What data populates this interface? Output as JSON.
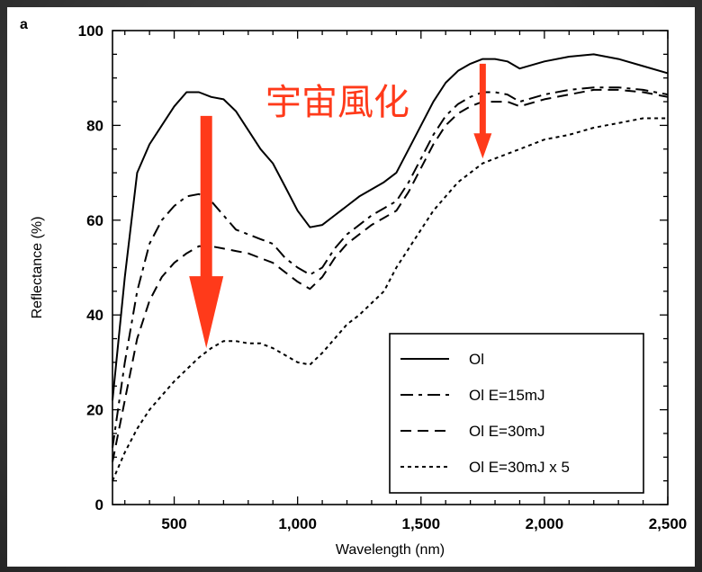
{
  "panel_label": "a",
  "colors": {
    "annotation": "#ff3a1a",
    "axis": "#000000",
    "background": "#ffffff"
  },
  "chart_data": {
    "type": "line",
    "title": "",
    "xlabel": "Wavelength (nm)",
    "ylabel": "Reflectance (%)",
    "xlim": [
      250,
      2500
    ],
    "ylim": [
      0,
      100
    ],
    "xticks": [
      500,
      1000,
      1500,
      2000,
      2500
    ],
    "xtick_labels": [
      "500",
      "1,000",
      "1,500",
      "2,000",
      "2,500"
    ],
    "yticks": [
      0,
      20,
      40,
      60,
      80,
      100
    ],
    "ytick_labels": [
      "0",
      "20",
      "40",
      "60",
      "80",
      "100"
    ],
    "grid": false,
    "legend_position": "bottom-right",
    "series": [
      {
        "name": "Ol",
        "dash": "",
        "x": [
          250,
          300,
          350,
          400,
          450,
          500,
          550,
          600,
          650,
          700,
          750,
          800,
          850,
          900,
          950,
          1000,
          1050,
          1100,
          1150,
          1200,
          1250,
          1300,
          1350,
          1400,
          1450,
          1500,
          1550,
          1600,
          1650,
          1700,
          1750,
          1800,
          1850,
          1900,
          2000,
          2100,
          2200,
          2300,
          2400,
          2500
        ],
        "y": [
          22,
          48,
          70,
          76,
          80,
          84,
          87,
          87,
          86,
          85.5,
          83,
          79,
          75,
          72,
          67,
          62,
          58.5,
          59,
          61,
          63,
          65,
          66.5,
          68,
          70,
          75,
          80,
          85,
          89,
          91.5,
          93,
          94,
          94,
          93.5,
          92,
          93.5,
          94.5,
          95,
          94,
          92.5,
          91
        ]
      },
      {
        "name": "Ol E=15mJ",
        "dash": "14,6,4,6",
        "x": [
          250,
          300,
          350,
          400,
          450,
          500,
          550,
          600,
          650,
          700,
          750,
          800,
          850,
          900,
          950,
          1000,
          1050,
          1100,
          1150,
          1200,
          1250,
          1300,
          1350,
          1400,
          1450,
          1500,
          1550,
          1600,
          1650,
          1700,
          1750,
          1800,
          1850,
          1900,
          2000,
          2100,
          2200,
          2300,
          2400,
          2500
        ],
        "y": [
          12,
          30,
          45,
          55,
          60,
          63,
          65,
          65.5,
          64,
          61,
          58,
          57,
          56,
          55,
          52,
          50,
          48.5,
          50,
          54,
          57,
          59,
          61,
          62.5,
          64,
          68,
          73,
          78,
          82,
          84.5,
          86,
          87,
          87,
          86.5,
          85,
          86.5,
          87.5,
          88,
          88,
          87.5,
          86.5
        ]
      },
      {
        "name": "Ol E=30mJ",
        "dash": "12,7",
        "x": [
          250,
          300,
          350,
          400,
          450,
          500,
          550,
          600,
          650,
          700,
          750,
          800,
          850,
          900,
          950,
          1000,
          1050,
          1100,
          1150,
          1200,
          1250,
          1300,
          1350,
          1400,
          1450,
          1500,
          1550,
          1600,
          1650,
          1700,
          1750,
          1800,
          1850,
          1900,
          2000,
          2100,
          2200,
          2300,
          2400,
          2500
        ],
        "y": [
          9,
          22,
          35,
          43,
          48,
          51,
          53,
          54.5,
          54.5,
          54,
          53.5,
          53,
          52,
          51,
          49,
          47,
          45.5,
          48,
          52,
          55,
          57,
          59,
          60.5,
          62,
          66,
          71,
          76,
          80,
          82.5,
          84,
          85,
          85,
          85,
          84,
          85.5,
          86.5,
          87.5,
          87.5,
          87,
          86
        ]
      },
      {
        "name": "Ol E=30mJ x 5",
        "dash": "4,4",
        "x": [
          250,
          300,
          350,
          400,
          450,
          500,
          550,
          600,
          650,
          700,
          750,
          800,
          850,
          900,
          950,
          1000,
          1050,
          1100,
          1150,
          1200,
          1250,
          1300,
          1350,
          1400,
          1450,
          1500,
          1550,
          1600,
          1650,
          1700,
          1750,
          1800,
          1850,
          1900,
          2000,
          2100,
          2200,
          2300,
          2400,
          2500
        ],
        "y": [
          5,
          11,
          16,
          20,
          23,
          26,
          28.5,
          31,
          33,
          34.5,
          34.5,
          34,
          34,
          33,
          31.5,
          30,
          29.5,
          32,
          35,
          38,
          40,
          42.5,
          45,
          50,
          54,
          58,
          62,
          65,
          68,
          70,
          72,
          73,
          74,
          75,
          77,
          78,
          79.5,
          80.5,
          81.5,
          81.5
        ]
      }
    ],
    "annotations": [
      {
        "text": "宇宙風化",
        "x": 870,
        "y": 85
      },
      {
        "type": "arrow",
        "x": 630,
        "y_from": 82,
        "y_to": 33
      },
      {
        "type": "arrow",
        "x": 1750,
        "y_from": 93,
        "y_to": 73
      }
    ]
  }
}
